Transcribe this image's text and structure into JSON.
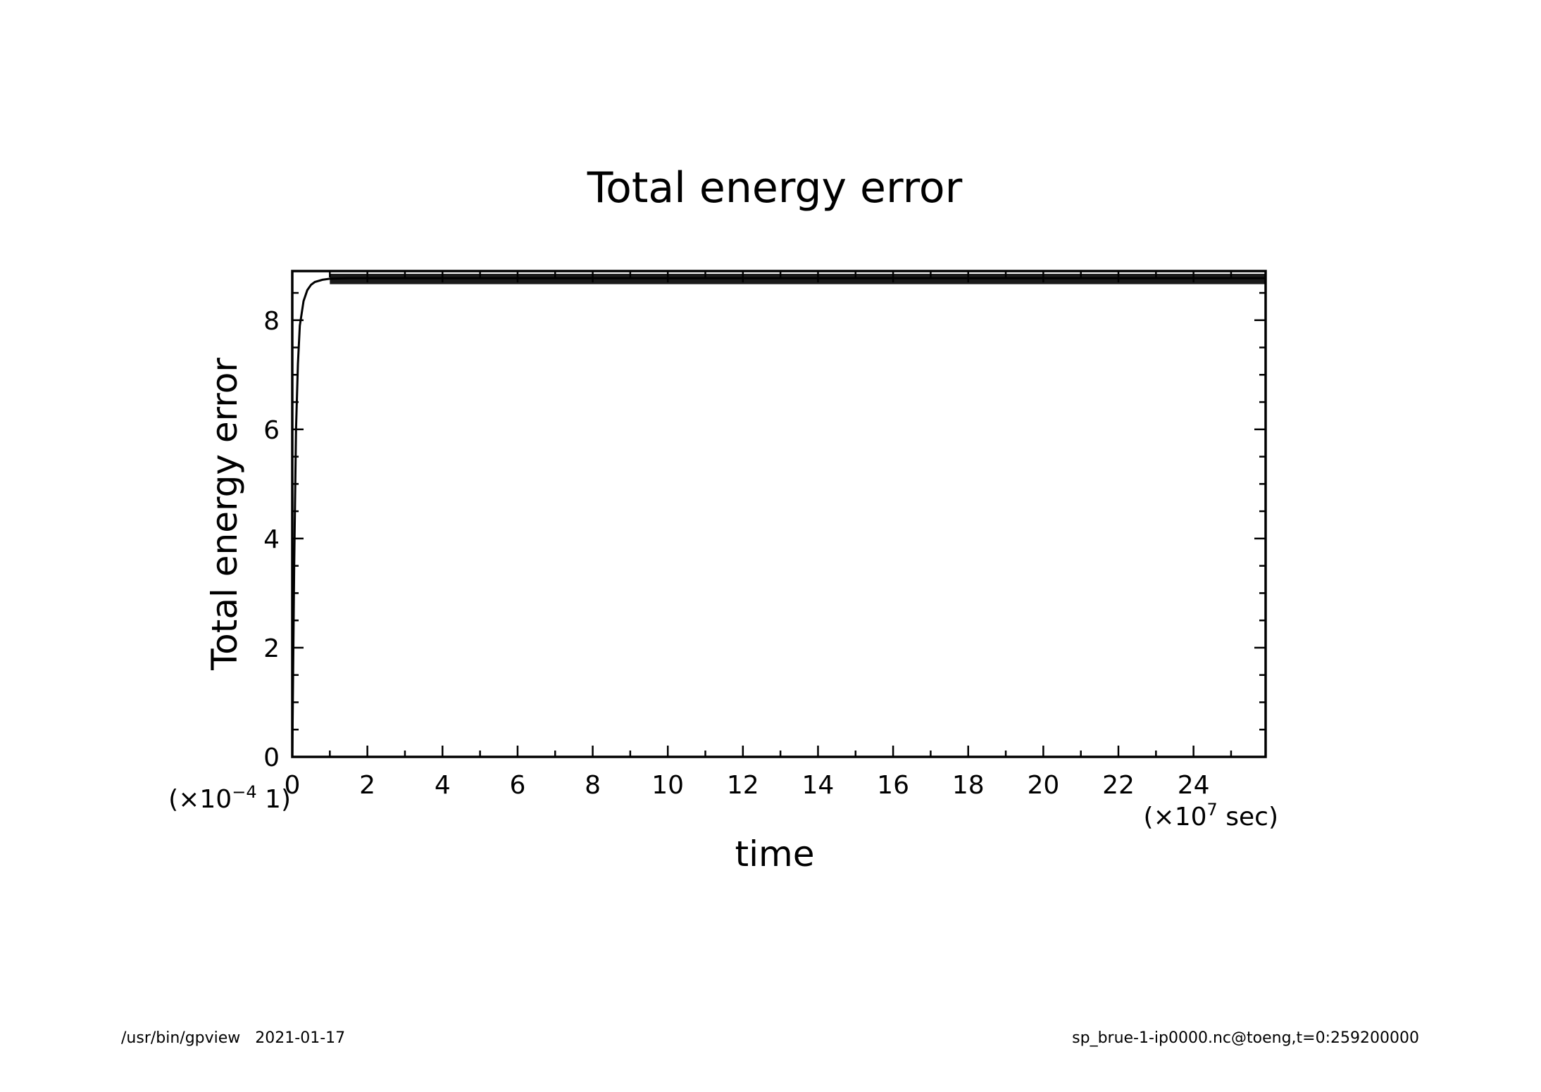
{
  "chart_data": {
    "type": "line",
    "title": "Total energy error",
    "xlabel": "time",
    "ylabel": "Total energy error",
    "x_multiplier": {
      "prefix": "(×10",
      "exponent": "7",
      "suffix": " sec)"
    },
    "y_multiplier": {
      "prefix": "(×10",
      "exponent": "−4",
      "suffix": " 1)"
    },
    "xlim": [
      0,
      25.92
    ],
    "ylim": [
      0,
      8.9
    ],
    "x_ticks": [
      0,
      2,
      4,
      6,
      8,
      10,
      12,
      14,
      16,
      18,
      20,
      22,
      24
    ],
    "y_ticks": [
      0,
      2,
      4,
      6,
      8
    ],
    "grid": false,
    "series": [
      {
        "color": "#000000",
        "x": [
          0,
          0.05,
          0.1,
          0.15,
          0.2,
          0.3,
          0.4,
          0.5,
          0.6,
          0.8,
          1.0,
          1.5,
          2,
          4,
          6,
          8,
          10,
          12,
          14,
          16,
          18,
          20,
          22,
          24,
          25.92
        ],
        "y": [
          0,
          3.5,
          6.0,
          7.2,
          7.9,
          8.35,
          8.55,
          8.65,
          8.7,
          8.74,
          8.76,
          8.77,
          8.77,
          8.77,
          8.77,
          8.77,
          8.77,
          8.77,
          8.77,
          8.77,
          8.77,
          8.77,
          8.77,
          8.77,
          8.77
        ],
        "band_low": 8.66,
        "band_high": 8.85
      }
    ]
  },
  "footer": {
    "left": "/usr/bin/gpview   2021-01-17",
    "right": "sp_brue-1-ip0000.nc@toeng,t=0:259200000"
  }
}
